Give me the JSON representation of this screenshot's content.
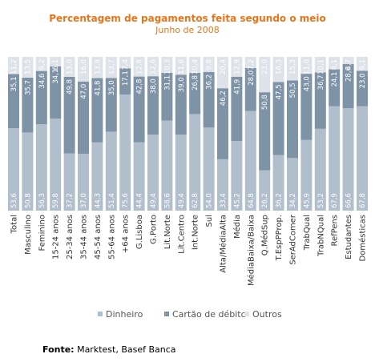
{
  "chart_data": {
    "type": "bar",
    "stacked": true,
    "orientation": "vertical",
    "normalized": true,
    "title": "Percentagem de pagamentos feita segundo o meio",
    "subtitle": "Junho de 2008",
    "ylim": [
      0,
      100
    ],
    "grid": false,
    "legend": "bottom",
    "categories": [
      "Total",
      "Masculino",
      "Feminino",
      "15-24 anos",
      "25-34 anos",
      "35-44 anos",
      "45-54 anos",
      "55-64 anos",
      "+64 anos",
      "G.Lisboa",
      "G.Porto",
      "Lit.Norte",
      "Lit.Centro",
      "Int.Norte",
      "Sul",
      "Alta/MédiaAlta",
      "Média",
      "MédiaBaixa/Baixa",
      "Q.MédSup",
      "T.EspPProp.",
      "SerAdComer",
      "TrabQual",
      "TrabNQual",
      "RefPens",
      "Estudantes",
      "Domésticas"
    ],
    "series": [
      {
        "name": "Dinheiro",
        "color": "#b1bfcc",
        "values": [
          53.6,
          50.8,
          56.3,
          59.8,
          37.2,
          37.0,
          44.3,
          51.4,
          75.6,
          44.4,
          49.4,
          58.6,
          49.4,
          62.8,
          54.0,
          33.4,
          45.2,
          64.8,
          26.2,
          36.2,
          34.2,
          45.9,
          53.2,
          67.9,
          66.6,
          67.8
        ]
      },
      {
        "name": "Cartão de débito",
        "color": "#7f93a7",
        "values": [
          35.1,
          35.7,
          34.6,
          34.1,
          49.8,
          47.0,
          41.8,
          35.0,
          17.1,
          42.8,
          38.0,
          31.1,
          39.0,
          26.8,
          36.2,
          46.2,
          41.9,
          28.0,
          50.8,
          47.5,
          50.5,
          43.0,
          36.7,
          24.1,
          28.6,
          23.0
        ]
      },
      {
        "name": "Outros",
        "color": "#dee3e9",
        "values": [
          11.2,
          13.5,
          9.2,
          6.1,
          13.0,
          16.0,
          13.8,
          13.7,
          7.4,
          12.8,
          12.6,
          10.3,
          11.6,
          10.4,
          9.8,
          20.4,
          12.9,
          7.2,
          23.0,
          16.3,
          15.3,
          11.0,
          10.1,
          8.1,
          4.7,
          9.1
        ]
      }
    ]
  },
  "source": {
    "label": "Fonte:",
    "text": " Marktest, Basef Banca"
  }
}
